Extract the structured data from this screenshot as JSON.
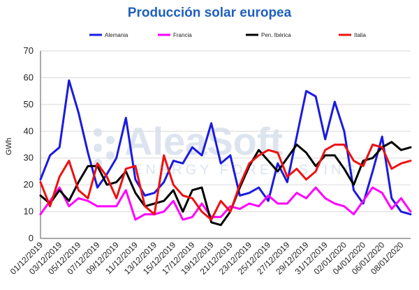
{
  "colors": {
    "title": "#1f5fbf",
    "grid": "#d9d9d9",
    "axis": "#555555",
    "watermark": "#dde4ef"
  },
  "watermark": {
    "brand": "AleaSoft",
    "tagline": "ENERGY FORECASTING"
  },
  "chart_data": {
    "type": "line",
    "title": "Producción solar europea",
    "ylabel": "GWh",
    "xlabel": "",
    "ylim": [
      0,
      70
    ],
    "yticks": [
      0,
      10,
      20,
      30,
      40,
      50,
      60,
      70
    ],
    "grid": true,
    "legend_position": "top",
    "x": [
      "01/12/2019",
      "02/12/2019",
      "03/12/2019",
      "04/12/2019",
      "05/12/2019",
      "06/12/2019",
      "07/12/2019",
      "08/12/2019",
      "09/12/2019",
      "10/12/2019",
      "11/12/2019",
      "12/12/2019",
      "13/12/2019",
      "14/12/2019",
      "15/12/2019",
      "16/12/2019",
      "17/12/2019",
      "18/12/2019",
      "19/12/2019",
      "20/12/2019",
      "21/12/2019",
      "22/12/2019",
      "23/12/2019",
      "24/12/2019",
      "25/12/2019",
      "26/12/2019",
      "27/12/2019",
      "28/12/2019",
      "29/12/2019",
      "30/12/2019",
      "31/12/2019",
      "01/01/2020",
      "02/01/2020",
      "03/01/2020",
      "04/01/2020",
      "05/01/2020",
      "06/01/2020",
      "07/01/2020",
      "08/01/2020",
      "09/01/2020"
    ],
    "xtick_labels": [
      "01/12/2019",
      "03/12/2019",
      "05/12/2019",
      "07/12/2019",
      "09/12/2019",
      "11/12/2019",
      "13/12/2019",
      "15/12/2019",
      "17/12/2019",
      "19/12/2019",
      "21/12/2019",
      "23/12/2019",
      "25/12/2019",
      "27/12/2019",
      "29/12/2019",
      "31/12/2019",
      "02/01/2020",
      "04/01/2020",
      "06/01/2020",
      "08/01/2020"
    ],
    "series": [
      {
        "name": "Alemania",
        "color": "#1a1ae0",
        "values": [
          22,
          31,
          34,
          59,
          47,
          32,
          19,
          24,
          30,
          45,
          22,
          16,
          17,
          21,
          29,
          28,
          34,
          31,
          43,
          28,
          31,
          16,
          17,
          19,
          14,
          28,
          21,
          38,
          55,
          53,
          37,
          51,
          40,
          18,
          13,
          25,
          38,
          15,
          10,
          9
        ]
      },
      {
        "name": "Francia",
        "color": "#ff00ff",
        "values": [
          9,
          14,
          19,
          12,
          15,
          14,
          12,
          12,
          12,
          18,
          7,
          9,
          9,
          10,
          14,
          7,
          8,
          13,
          8,
          8,
          12,
          11,
          13,
          12,
          16,
          13,
          13,
          17,
          15,
          19,
          15,
          13,
          12,
          9,
          14,
          19,
          17,
          11,
          15,
          10
        ]
      },
      {
        "name": "Pen. Ibérica",
        "color": "#000000",
        "values": [
          16,
          13,
          18,
          14,
          21,
          27,
          27,
          20,
          21,
          25,
          17,
          12,
          13,
          14,
          18,
          10,
          18,
          19,
          6,
          5,
          10,
          19,
          27,
          33,
          29,
          25,
          30,
          35,
          32,
          27,
          31,
          31,
          26,
          20,
          29,
          30,
          34,
          36,
          33,
          34
        ]
      },
      {
        "name": "Italia",
        "color": "#ee1111",
        "values": [
          21,
          12,
          23,
          29,
          18,
          15,
          28,
          23,
          15,
          26,
          27,
          12,
          9,
          31,
          20,
          16,
          15,
          10,
          7,
          14,
          10,
          20,
          28,
          31,
          33,
          32,
          23,
          26,
          22,
          25,
          33,
          35,
          35,
          29,
          27,
          35,
          34,
          26,
          28,
          29
        ]
      }
    ]
  }
}
